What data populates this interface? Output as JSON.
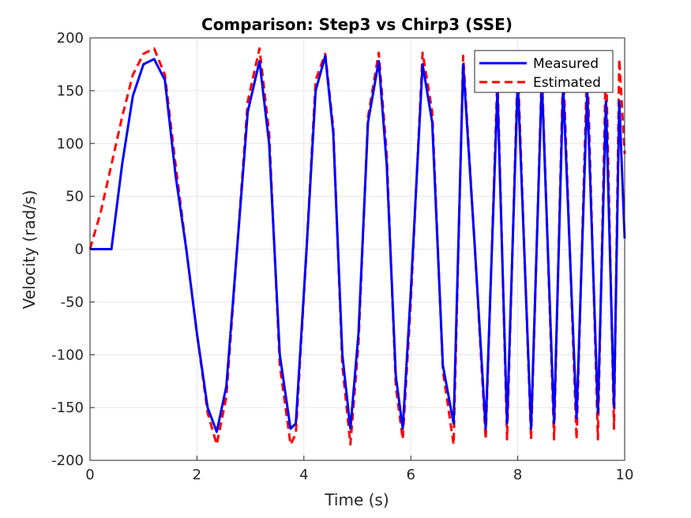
{
  "chart_data": {
    "type": "line",
    "title": "Comparison: Step3 vs Chirp3 (SSE)",
    "xlabel": "Time (s)",
    "ylabel": "Velocity (rad/s)",
    "xlim": [
      0,
      10
    ],
    "ylim": [
      -200,
      200
    ],
    "xticks": [
      0,
      2,
      4,
      6,
      8,
      10
    ],
    "yticks": [
      -200,
      -150,
      -100,
      -50,
      0,
      50,
      100,
      150,
      200
    ],
    "grid": true,
    "legend_position": "top-right",
    "x": [
      0,
      0.2,
      0.4,
      0.6,
      0.8,
      1.0,
      1.2,
      1.4,
      1.6,
      1.8,
      2.0,
      2.2,
      2.37,
      2.55,
      2.75,
      2.95,
      3.17,
      3.35,
      3.55,
      3.75,
      3.85,
      4.05,
      4.22,
      4.4,
      4.55,
      4.72,
      4.87,
      5.02,
      5.2,
      5.4,
      5.55,
      5.72,
      5.85,
      6.0,
      6.22,
      6.4,
      6.6,
      6.8,
      6.98,
      7.2,
      7.4,
      7.62,
      7.8,
      8.0,
      8.25,
      8.45,
      8.68,
      8.85,
      9.1,
      9.3,
      9.5,
      9.65,
      9.8,
      9.9,
      10.0
    ],
    "series": [
      {
        "name": "Measured",
        "color": "#0000ff",
        "style": "solid",
        "values": [
          0,
          0,
          0,
          80,
          145,
          175,
          180,
          160,
          70,
          0,
          -80,
          -150,
          -173,
          -130,
          0,
          130,
          178,
          100,
          -100,
          -170,
          -165,
          0,
          150,
          183,
          110,
          -100,
          -170,
          -80,
          120,
          178,
          80,
          -120,
          -170,
          -40,
          175,
          120,
          -110,
          -165,
          175,
          0,
          -170,
          150,
          -165,
          160,
          -170,
          160,
          -165,
          155,
          -160,
          150,
          -155,
          140,
          -150,
          140,
          10
        ]
      },
      {
        "name": "Estimated",
        "color": "#ff0000",
        "style": "dashed",
        "values": [
          0,
          35,
          80,
          125,
          165,
          185,
          190,
          165,
          80,
          0,
          -80,
          -155,
          -185,
          -140,
          0,
          140,
          190,
          110,
          -110,
          -185,
          -175,
          0,
          160,
          185,
          115,
          -110,
          -185,
          -90,
          125,
          186,
          90,
          -130,
          -180,
          -50,
          186,
          130,
          -115,
          -185,
          183,
          0,
          -180,
          165,
          -180,
          175,
          -180,
          170,
          -180,
          175,
          -180,
          180,
          -180,
          180,
          -170,
          180,
          90
        ]
      }
    ]
  }
}
